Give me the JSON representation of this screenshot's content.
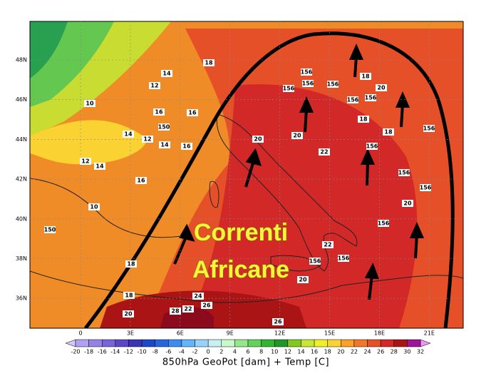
{
  "map": {
    "lat_labels": [
      "48N",
      "46N",
      "44N",
      "42N",
      "40N",
      "38N",
      "36N"
    ],
    "lon_labels": [
      "0",
      "3E",
      "6E",
      "9E",
      "12E",
      "15E",
      "18E",
      "21E"
    ],
    "annotation": [
      "Correnti",
      "Africane"
    ],
    "contour_labels": [
      "18",
      "14",
      "12",
      "10",
      "16",
      "16",
      "150",
      "156",
      "156",
      "156",
      "18",
      "20",
      "156",
      "156",
      "156",
      "14",
      "12",
      "14",
      "16",
      "18",
      "20",
      "22",
      "156",
      "156",
      "156",
      "20",
      "12",
      "14",
      "16",
      "10",
      "18",
      "150",
      "156",
      "22",
      "20",
      "156",
      "156",
      "18",
      "24",
      "22",
      "26",
      "28",
      "20",
      "26",
      "156",
      "18",
      "20"
    ]
  },
  "colorbar": {
    "labels": [
      "-20",
      "-18",
      "-16",
      "-14",
      "-12",
      "-10",
      "-8",
      "-6",
      "-4",
      "-2",
      "0",
      "2",
      "4",
      "6",
      "8",
      "10",
      "12",
      "14",
      "16",
      "18",
      "20",
      "22",
      "24",
      "26",
      "28",
      "30",
      "32"
    ],
    "colors": [
      "#b4a0f0",
      "#9682e6",
      "#7864d7",
      "#5a46c8",
      "#3c32b4",
      "#1e46c8",
      "#2864dc",
      "#3c8cf0",
      "#64b4fa",
      "#96d2fa",
      "#c8f0f0",
      "#c8fac8",
      "#96e68c",
      "#64d25a",
      "#32b432",
      "#1e9628",
      "#82c81e",
      "#c8e632",
      "#f0f028",
      "#fad232",
      "#faa028",
      "#f07828",
      "#e65028",
      "#d22828",
      "#aa1414",
      "#a01496"
    ],
    "under_color": "#d2c8fa",
    "over_color": "#f096f0",
    "caption": "850hPa GeoPot [dam] + Temp [C]"
  }
}
